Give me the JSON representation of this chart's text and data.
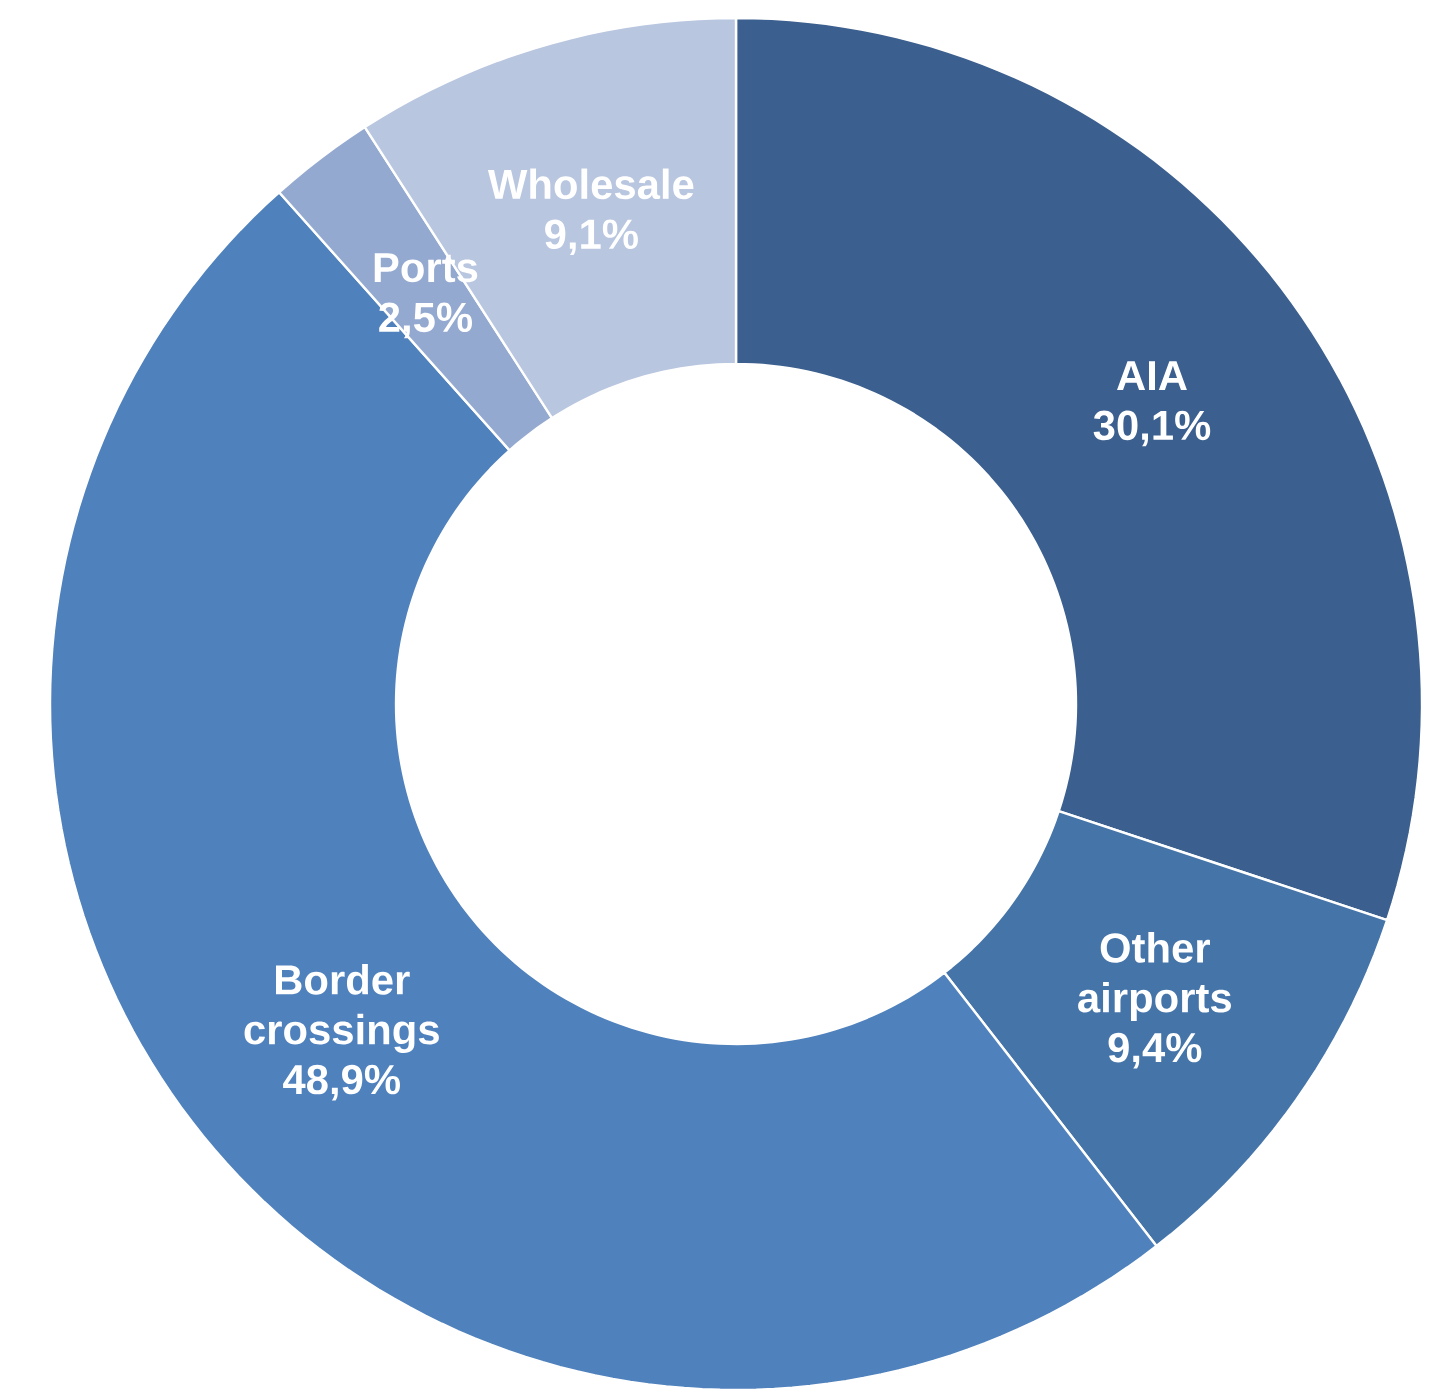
{
  "chart_data": {
    "type": "donut",
    "categories": [
      "AIA",
      "Other airports",
      "Border crossings",
      "Ports",
      "Wholesale"
    ],
    "values": [
      30.1,
      9.4,
      48.9,
      2.5,
      9.1
    ],
    "value_labels": [
      "30,1%",
      "9,4%",
      "48,9%",
      "2,5%",
      "9,1%"
    ],
    "colors": [
      "#3b5f8e",
      "#4574a9",
      "#4f81bd",
      "#94a9d0",
      "#b9c6e0"
    ]
  }
}
